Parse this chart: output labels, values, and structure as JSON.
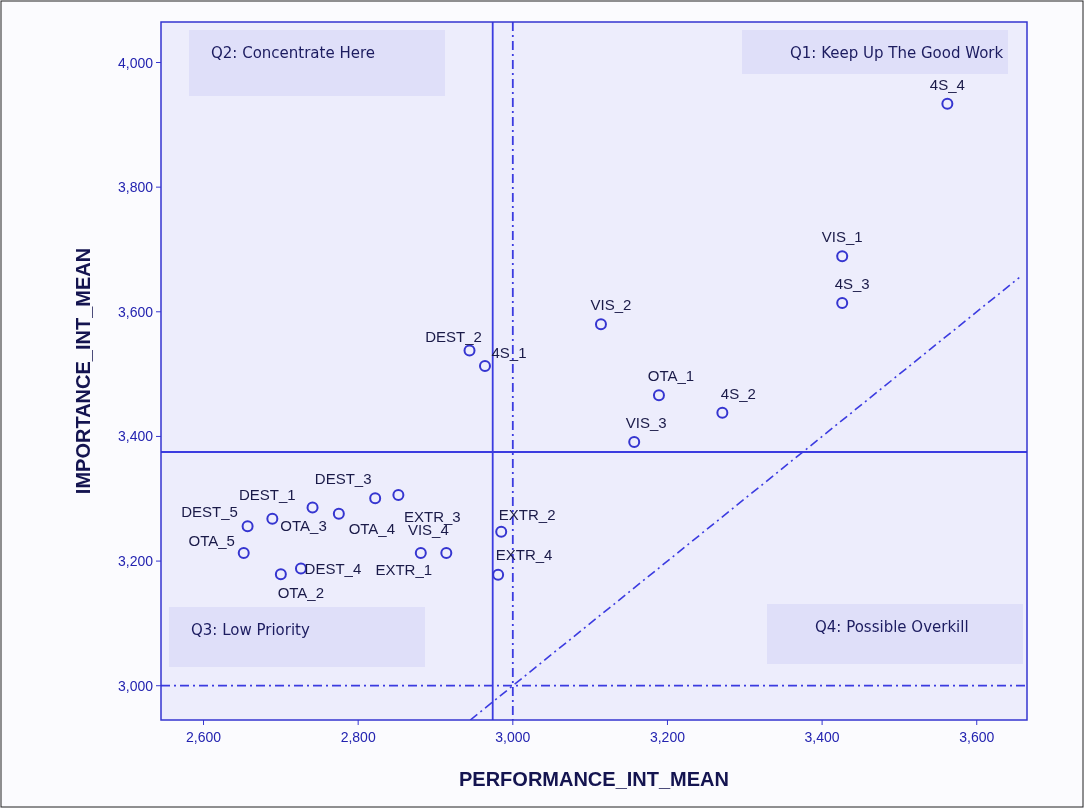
{
  "chart_data": {
    "type": "scatter",
    "xlabel": "PERFORMANCE_INT_MEAN",
    "ylabel": "IMPORTANCE_INT_MEAN",
    "xlim": [
      2545,
      3665
    ],
    "ylim": [
      2945,
      4065
    ],
    "xticks": [
      {
        "value": 2600,
        "label": "2,600"
      },
      {
        "value": 2800,
        "label": "2,800"
      },
      {
        "value": 3000,
        "label": "3,000"
      },
      {
        "value": 3200,
        "label": "3,200"
      },
      {
        "value": 3400,
        "label": "3,400"
      },
      {
        "value": 3600,
        "label": "3,600"
      }
    ],
    "yticks": [
      {
        "value": 3000,
        "label": "3,000"
      },
      {
        "value": 3200,
        "label": "3,200"
      },
      {
        "value": 3400,
        "label": "3,400"
      },
      {
        "value": 3600,
        "label": "3,600"
      },
      {
        "value": 3800,
        "label": "3,800"
      },
      {
        "value": 4000,
        "label": "4,000"
      }
    ],
    "grid": false,
    "marker": "circle",
    "series": [
      {
        "color": "#3535d0",
        "x": [
          3562,
          3426,
          3426,
          3114,
          2944,
          2964,
          3189,
          3271,
          3157,
          2852,
          2822,
          2775,
          2741,
          2689,
          2657,
          2652,
          2700,
          2726,
          2881,
          2914,
          2985,
          2981
        ],
        "values": [
          3934,
          3689,
          3614,
          3580,
          3538,
          3513,
          3466,
          3438,
          3391,
          3306,
          3301,
          3276,
          3286,
          3268,
          3256,
          3213,
          3179,
          3188,
          3213,
          3213,
          3247,
          3178
        ]
      },
      {
        "type": "line",
        "color": "#3b3be0",
        "line_style": "dashed",
        "marker": "none",
        "x": [
          2945,
          3655
        ],
        "values": [
          2945,
          3655
        ]
      }
    ],
    "ref_lines": [
      {
        "axis": "y",
        "value": 3375,
        "color": "#3b3be0",
        "line_style": "solid"
      },
      {
        "axis": "x",
        "value": 2974,
        "color": "#3b3be0",
        "line_style": "solid"
      },
      {
        "axis": "x",
        "value": 3000,
        "color": "#3b3be0",
        "line_style": "dashed"
      },
      {
        "axis": "y",
        "value": 3000,
        "color": "#3b3be0",
        "line_style": "dashed"
      }
    ],
    "annotations": [
      "Q2: Concentrate Here",
      "Q1: Keep Up The Good Work",
      "Q3: Low Priority",
      "Q4: Possible Overkill",
      {
        "text": "4S_4",
        "x": 3562,
        "y": 3934
      },
      {
        "text": "VIS_1",
        "x": 3426,
        "y": 3689
      },
      {
        "text": "4S_3",
        "x": 3426,
        "y": 3614
      },
      {
        "text": "VIS_2",
        "x": 3114,
        "y": 3580
      },
      {
        "text": "DEST_2",
        "x": 2944,
        "y": 3538
      },
      {
        "text": "4S_1",
        "x": 2964,
        "y": 3513
      },
      {
        "text": "OTA_1",
        "x": 3189,
        "y": 3466
      },
      {
        "text": "4S_2",
        "x": 3271,
        "y": 3438
      },
      {
        "text": "VIS_3",
        "x": 3157,
        "y": 3391
      },
      {
        "text": "EXTR_3",
        "x": 2852,
        "y": 3306
      },
      {
        "text": "DEST_3",
        "x": 2822,
        "y": 3301
      },
      {
        "text": "OTA_4",
        "x": 2775,
        "y": 3276
      },
      {
        "text": "OTA_3",
        "x": 2741,
        "y": 3286
      },
      {
        "text": "DEST_1",
        "x": 2689,
        "y": 3268
      },
      {
        "text": "DEST_5",
        "x": 2657,
        "y": 3256
      },
      {
        "text": "OTA_5",
        "x": 2652,
        "y": 3213
      },
      {
        "text": "OTA_2",
        "x": 2700,
        "y": 3179
      },
      {
        "text": "DEST_4",
        "x": 2726,
        "y": 3188
      },
      {
        "text": "EXTR_1",
        "x": 2881,
        "y": 3213
      },
      {
        "text": "VIS_4",
        "x": 2914,
        "y": 3213
      },
      {
        "text": "EXTR_2",
        "x": 2985,
        "y": 3247
      },
      {
        "text": "EXTR_4",
        "x": 2981,
        "y": 3178
      }
    ]
  }
}
